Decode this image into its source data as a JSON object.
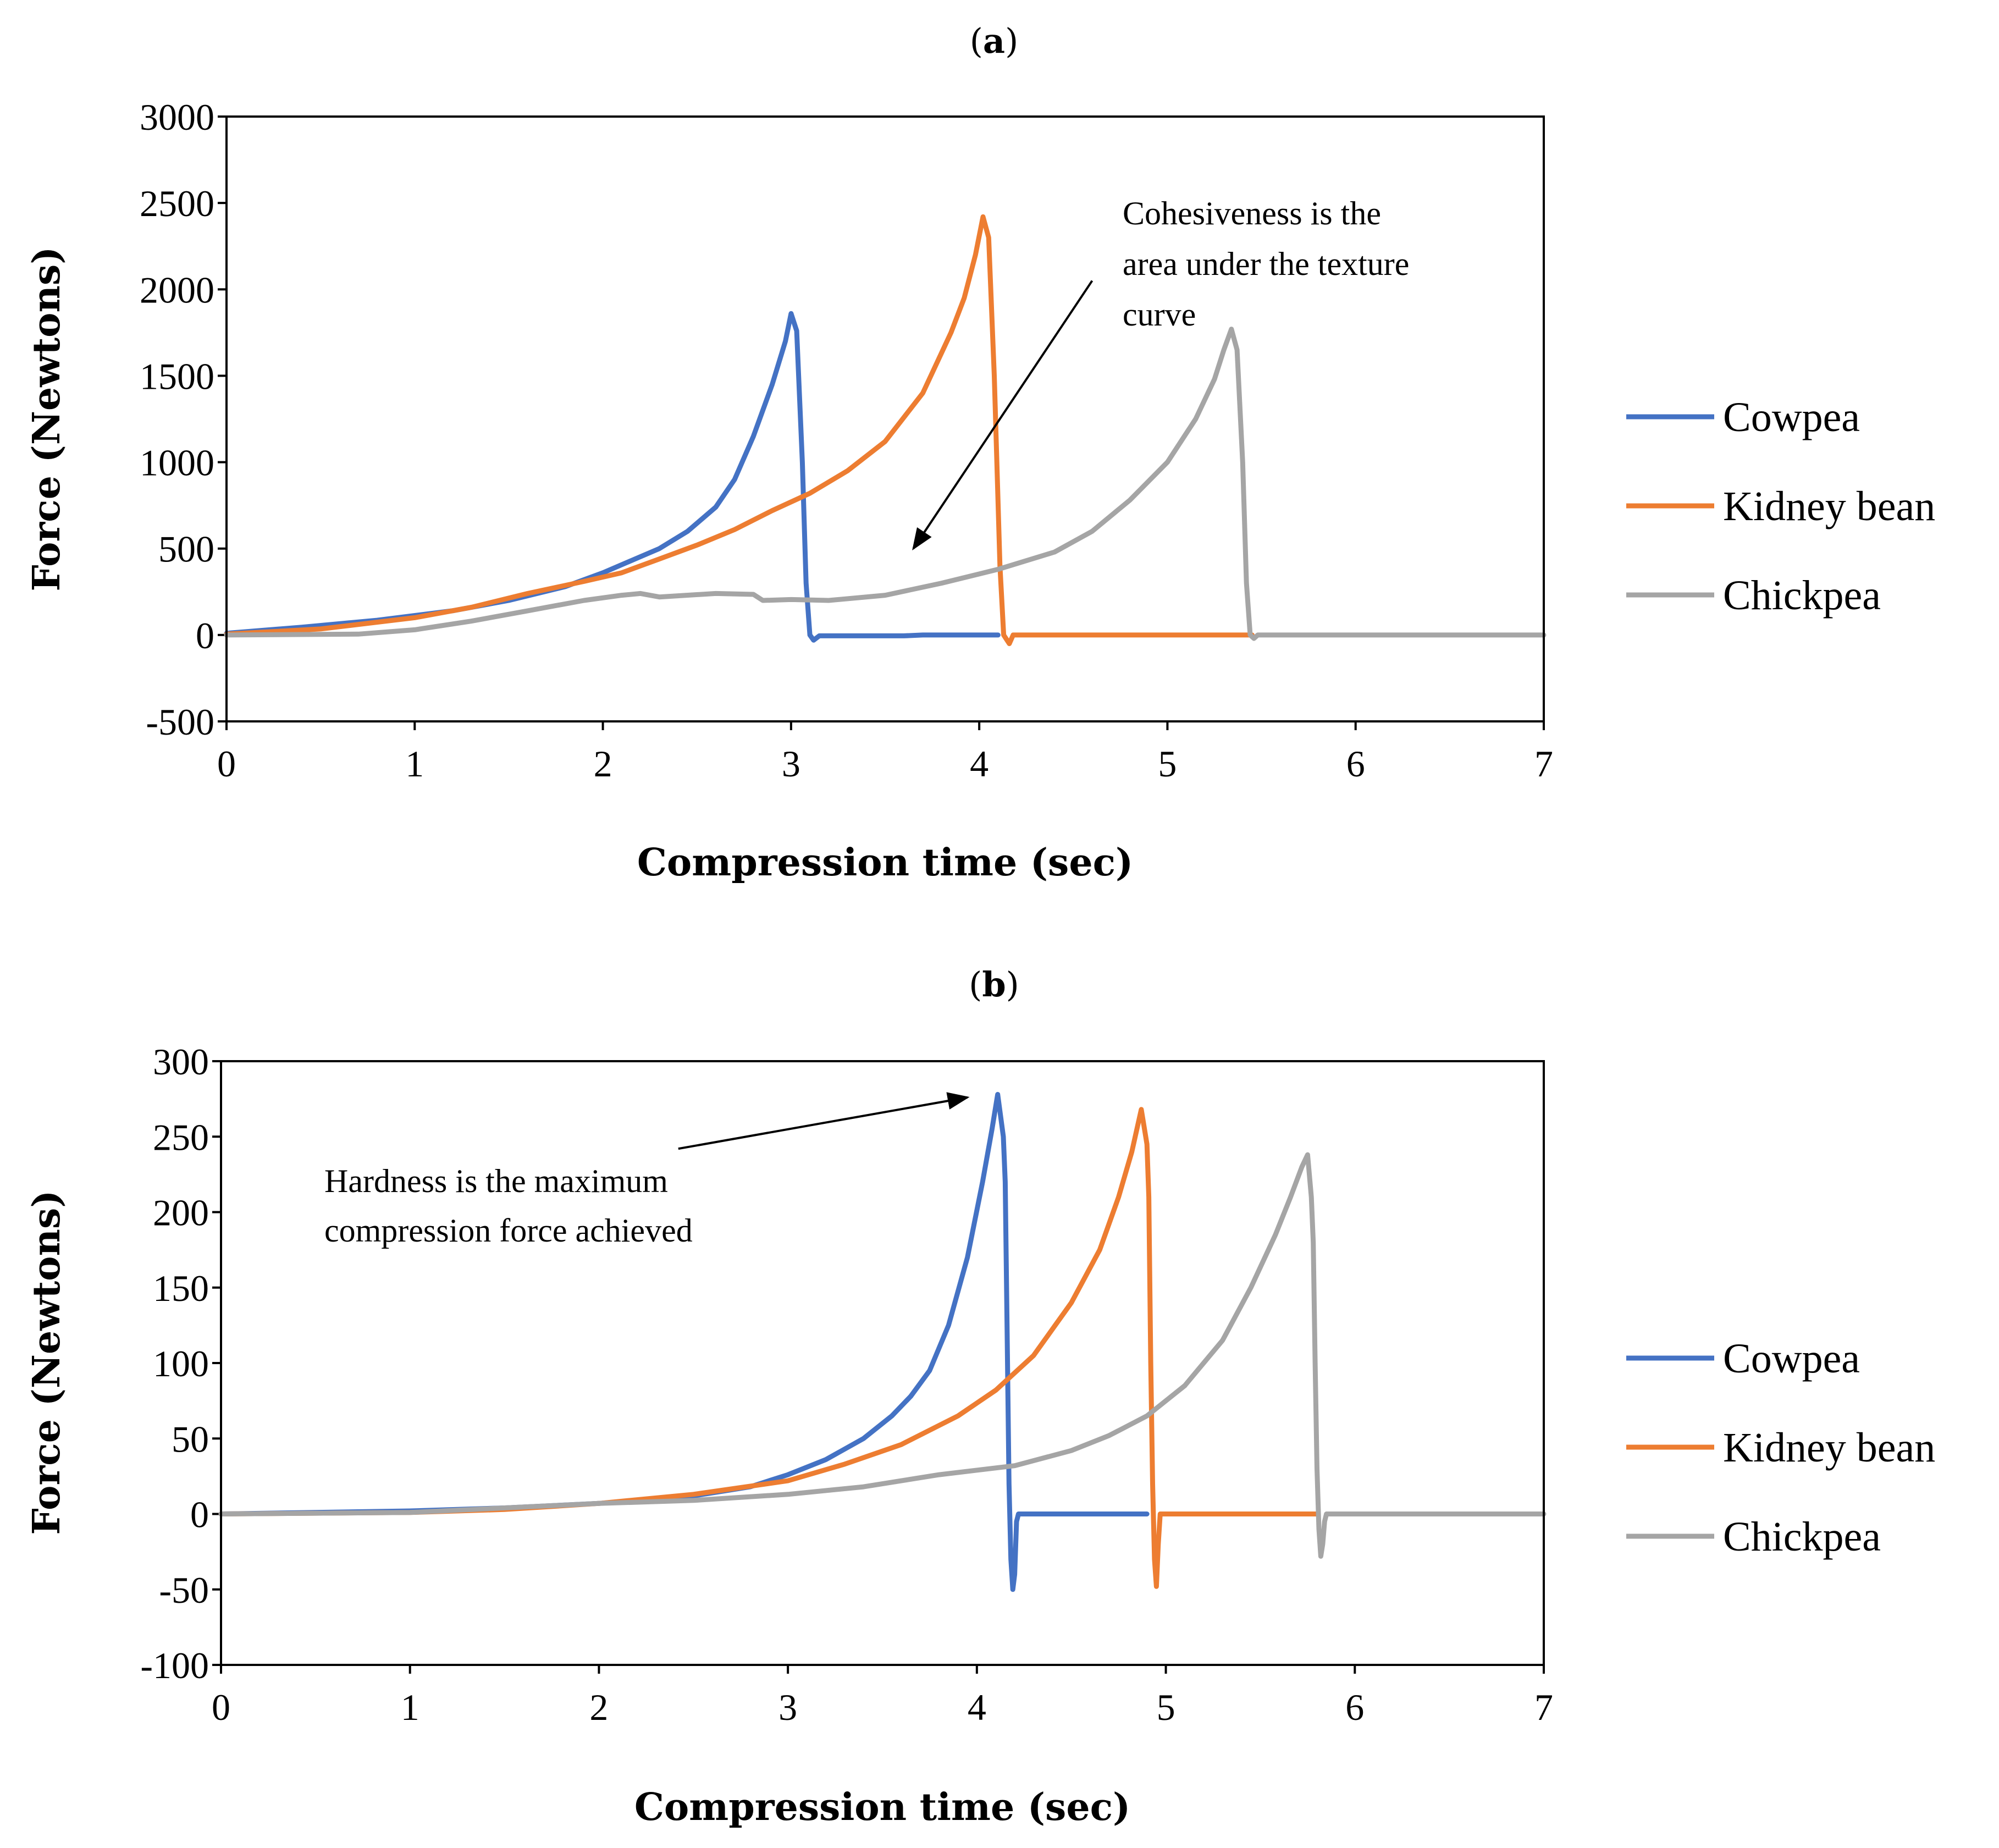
{
  "chart_data": [
    {
      "type": "line",
      "panel_label": "a",
      "xlabel": "Compression time (sec)",
      "ylabel": "Force (Newtons)",
      "xlim": [
        0,
        7
      ],
      "ylim": [
        -500,
        3000
      ],
      "xticks": [
        0,
        1,
        2,
        3,
        4,
        5,
        6,
        7
      ],
      "yticks": [
        -500,
        0,
        500,
        1000,
        1500,
        2000,
        2500,
        3000
      ],
      "annotation": {
        "lines": [
          "Cohesiveness   is   the",
          "area under the texture",
          "curve"
        ],
        "arrow_from": [
          4.6,
          2050
        ],
        "arrow_to": [
          3.65,
          500
        ]
      },
      "series": [
        {
          "name": "Cowpea",
          "color": "#4472C4",
          "points": [
            [
              0,
              10
            ],
            [
              0.4,
              45
            ],
            [
              0.8,
              85
            ],
            [
              1.2,
              140
            ],
            [
              1.5,
              200
            ],
            [
              1.8,
              280
            ],
            [
              2.0,
              360
            ],
            [
              2.15,
              430
            ],
            [
              2.3,
              500
            ],
            [
              2.45,
              600
            ],
            [
              2.6,
              740
            ],
            [
              2.7,
              900
            ],
            [
              2.8,
              1150
            ],
            [
              2.9,
              1450
            ],
            [
              2.97,
              1700
            ],
            [
              3.0,
              1860
            ],
            [
              3.03,
              1760
            ],
            [
              3.06,
              1000
            ],
            [
              3.08,
              300
            ],
            [
              3.1,
              0
            ],
            [
              3.12,
              -30
            ],
            [
              3.15,
              -5
            ],
            [
              3.3,
              -5
            ],
            [
              3.6,
              -5
            ],
            [
              3.7,
              0
            ],
            [
              4.1,
              0
            ]
          ]
        },
        {
          "name": "Kidney bean",
          "color": "#ED7D31",
          "points": [
            [
              0,
              5
            ],
            [
              0.5,
              35
            ],
            [
              1.0,
              100
            ],
            [
              1.3,
              160
            ],
            [
              1.6,
              240
            ],
            [
              1.9,
              310
            ],
            [
              2.1,
              360
            ],
            [
              2.3,
              440
            ],
            [
              2.5,
              520
            ],
            [
              2.7,
              610
            ],
            [
              2.9,
              720
            ],
            [
              3.1,
              820
            ],
            [
              3.3,
              950
            ],
            [
              3.5,
              1120
            ],
            [
              3.7,
              1400
            ],
            [
              3.85,
              1750
            ],
            [
              3.92,
              1950
            ],
            [
              3.98,
              2200
            ],
            [
              4.02,
              2420
            ],
            [
              4.05,
              2300
            ],
            [
              4.08,
              1500
            ],
            [
              4.11,
              400
            ],
            [
              4.13,
              0
            ],
            [
              4.16,
              -50
            ],
            [
              4.18,
              0
            ],
            [
              4.5,
              0
            ],
            [
              5.45,
              0
            ]
          ]
        },
        {
          "name": "Chickpea",
          "color": "#A5A5A5",
          "points": [
            [
              0,
              0
            ],
            [
              0.7,
              5
            ],
            [
              1.0,
              30
            ],
            [
              1.3,
              80
            ],
            [
              1.6,
              140
            ],
            [
              1.9,
              200
            ],
            [
              2.1,
              230
            ],
            [
              2.2,
              240
            ],
            [
              2.3,
              220
            ],
            [
              2.6,
              240
            ],
            [
              2.8,
              235
            ],
            [
              2.85,
              200
            ],
            [
              3.0,
              205
            ],
            [
              3.2,
              200
            ],
            [
              3.5,
              230
            ],
            [
              3.8,
              300
            ],
            [
              4.1,
              380
            ],
            [
              4.4,
              480
            ],
            [
              4.6,
              600
            ],
            [
              4.8,
              780
            ],
            [
              5.0,
              1000
            ],
            [
              5.15,
              1250
            ],
            [
              5.25,
              1480
            ],
            [
              5.3,
              1650
            ],
            [
              5.34,
              1770
            ],
            [
              5.37,
              1650
            ],
            [
              5.4,
              1000
            ],
            [
              5.42,
              300
            ],
            [
              5.44,
              0
            ],
            [
              5.46,
              -20
            ],
            [
              5.48,
              0
            ],
            [
              6.0,
              0
            ],
            [
              7.0,
              0
            ]
          ]
        }
      ]
    },
    {
      "type": "line",
      "panel_label": "b",
      "xlabel": "Compression time (sec)",
      "ylabel": "Force (Newtons)",
      "xlim": [
        0,
        7
      ],
      "ylim": [
        -100,
        300
      ],
      "xticks": [
        0,
        1,
        2,
        3,
        4,
        5,
        6,
        7
      ],
      "yticks": [
        -100,
        -50,
        0,
        50,
        100,
        150,
        200,
        250,
        300
      ],
      "annotation": {
        "lines": [
          "Hardness   is   the   maximum",
          "compression force achieved"
        ],
        "arrow_from": [
          2.42,
          242
        ],
        "arrow_to": [
          3.95,
          276
        ]
      },
      "series": [
        {
          "name": "Cowpea",
          "color": "#4472C4",
          "points": [
            [
              0,
              0
            ],
            [
              1.0,
              2
            ],
            [
              1.5,
              4
            ],
            [
              2.0,
              7
            ],
            [
              2.5,
              12
            ],
            [
              2.8,
              18
            ],
            [
              3.0,
              26
            ],
            [
              3.2,
              36
            ],
            [
              3.4,
              50
            ],
            [
              3.55,
              65
            ],
            [
              3.65,
              78
            ],
            [
              3.75,
              95
            ],
            [
              3.85,
              125
            ],
            [
              3.95,
              170
            ],
            [
              4.03,
              220
            ],
            [
              4.08,
              255
            ],
            [
              4.11,
              278
            ],
            [
              4.14,
              250
            ],
            [
              4.15,
              220
            ],
            [
              4.16,
              120
            ],
            [
              4.17,
              20
            ],
            [
              4.18,
              -30
            ],
            [
              4.19,
              -50
            ],
            [
              4.2,
              -40
            ],
            [
              4.21,
              -5
            ],
            [
              4.22,
              0
            ],
            [
              4.4,
              0
            ],
            [
              4.9,
              0
            ]
          ]
        },
        {
          "name": "Kidney bean",
          "color": "#ED7D31",
          "points": [
            [
              0,
              0
            ],
            [
              1.0,
              1
            ],
            [
              1.5,
              3
            ],
            [
              2.0,
              7
            ],
            [
              2.5,
              13
            ],
            [
              3.0,
              22
            ],
            [
              3.3,
              33
            ],
            [
              3.6,
              46
            ],
            [
              3.9,
              65
            ],
            [
              4.1,
              82
            ],
            [
              4.3,
              105
            ],
            [
              4.5,
              140
            ],
            [
              4.65,
              175
            ],
            [
              4.75,
              210
            ],
            [
              4.82,
              240
            ],
            [
              4.87,
              268
            ],
            [
              4.9,
              245
            ],
            [
              4.91,
              210
            ],
            [
              4.92,
              100
            ],
            [
              4.93,
              20
            ],
            [
              4.94,
              -30
            ],
            [
              4.95,
              -48
            ],
            [
              4.96,
              -20
            ],
            [
              4.97,
              0
            ],
            [
              5.2,
              0
            ],
            [
              5.8,
              0
            ]
          ]
        },
        {
          "name": "Chickpea",
          "color": "#A5A5A5",
          "points": [
            [
              0,
              0
            ],
            [
              1.0,
              1
            ],
            [
              2.0,
              7
            ],
            [
              2.5,
              9
            ],
            [
              3.0,
              13
            ],
            [
              3.4,
              18
            ],
            [
              3.8,
              26
            ],
            [
              4.2,
              32
            ],
            [
              4.5,
              42
            ],
            [
              4.7,
              52
            ],
            [
              4.9,
              65
            ],
            [
              5.1,
              85
            ],
            [
              5.3,
              115
            ],
            [
              5.45,
              150
            ],
            [
              5.58,
              185
            ],
            [
              5.66,
              210
            ],
            [
              5.72,
              230
            ],
            [
              5.75,
              238
            ],
            [
              5.77,
              210
            ],
            [
              5.78,
              180
            ],
            [
              5.79,
              100
            ],
            [
              5.8,
              30
            ],
            [
              5.81,
              -10
            ],
            [
              5.82,
              -28
            ],
            [
              5.83,
              -20
            ],
            [
              5.84,
              -5
            ],
            [
              5.85,
              0
            ],
            [
              6.2,
              0
            ],
            [
              7.0,
              0
            ]
          ]
        }
      ]
    }
  ]
}
